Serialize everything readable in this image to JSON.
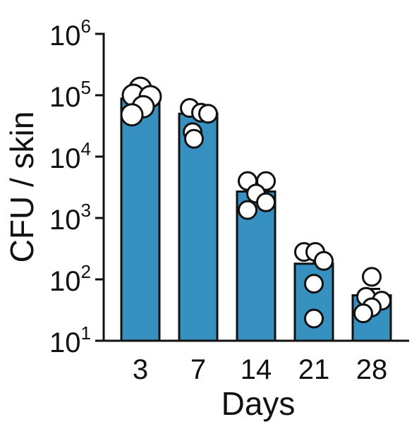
{
  "chart_data": {
    "type": "bar",
    "title": "",
    "xlabel": "Days",
    "ylabel": "CFU / skin",
    "yscale": "log",
    "ylim": [
      10,
      1000000
    ],
    "categories": [
      "3",
      "7",
      "14",
      "21",
      "28"
    ],
    "values": [
      88000,
      50000,
      2700,
      180,
      55
    ],
    "error_upper": [
      105000,
      50000,
      3300,
      230,
      70
    ],
    "points": [
      [
        130000,
        100000,
        95000,
        65000,
        48000
      ],
      [
        62000,
        52000,
        50000,
        25000,
        19500
      ],
      [
        4000,
        4000,
        2500,
        1800,
        1350
      ],
      [
        280,
        280,
        200,
        85,
        23
      ],
      [
        110,
        52,
        45,
        35,
        28
      ]
    ],
    "yticks": [
      {
        "base": "10",
        "exp": "1"
      },
      {
        "base": "10",
        "exp": "2"
      },
      {
        "base": "10",
        "exp": "3"
      },
      {
        "base": "10",
        "exp": "4"
      },
      {
        "base": "10",
        "exp": "5"
      },
      {
        "base": "10",
        "exp": "6"
      }
    ],
    "colors": {
      "bar": "#3690c0",
      "point_fill": "#ffffff",
      "outline": "#111111"
    },
    "grid": false,
    "legend": "none"
  }
}
